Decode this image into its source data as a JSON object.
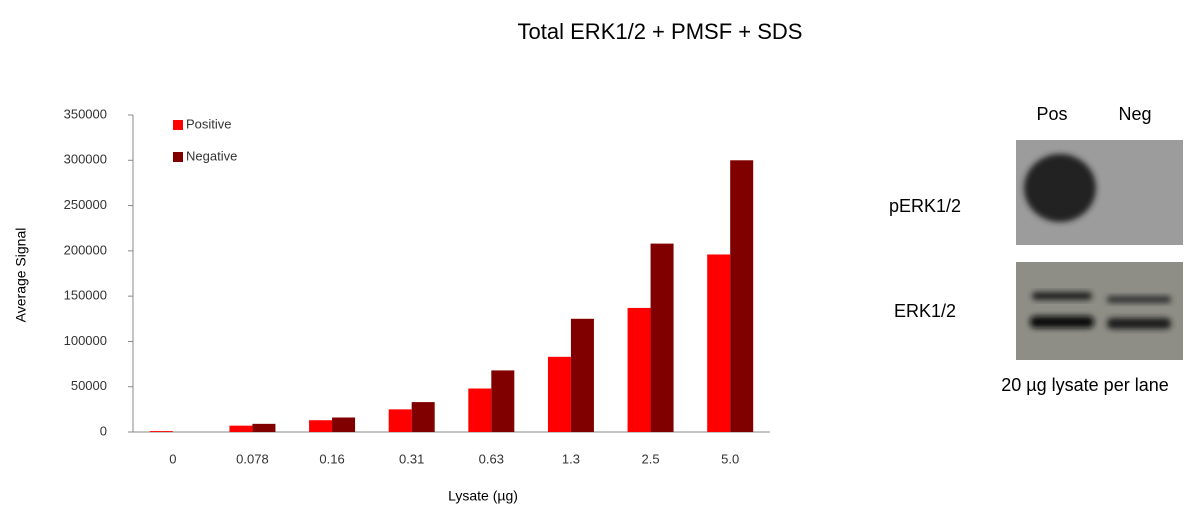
{
  "chart_data": {
    "type": "bar",
    "title": "Total ERK1/2 + PMSF + SDS",
    "xlabel": "Lysate (µg)",
    "ylabel": "Average Signal",
    "categories": [
      "0",
      "0.078",
      "0.16",
      "0.31",
      "0.63",
      "1.3",
      "2.5",
      "5.0"
    ],
    "series": [
      {
        "name": "Positive",
        "color": "#ff0000",
        "values": [
          1000,
          7000,
          13000,
          25000,
          48000,
          83000,
          137000,
          196000
        ]
      },
      {
        "name": "Negative",
        "color": "#800000",
        "values": [
          0,
          9000,
          16000,
          33000,
          68000,
          125000,
          208000,
          300000
        ]
      }
    ],
    "ylim": [
      0,
      350000
    ],
    "yticks": [
      0,
      50000,
      100000,
      150000,
      200000,
      250000,
      300000,
      350000
    ],
    "grid": false,
    "legend": "top-left"
  },
  "blot": {
    "lanes": [
      "Pos",
      "Neg"
    ],
    "rows": [
      "pERK1/2",
      "ERK1/2"
    ],
    "caption": "20 µg lysate per lane"
  }
}
